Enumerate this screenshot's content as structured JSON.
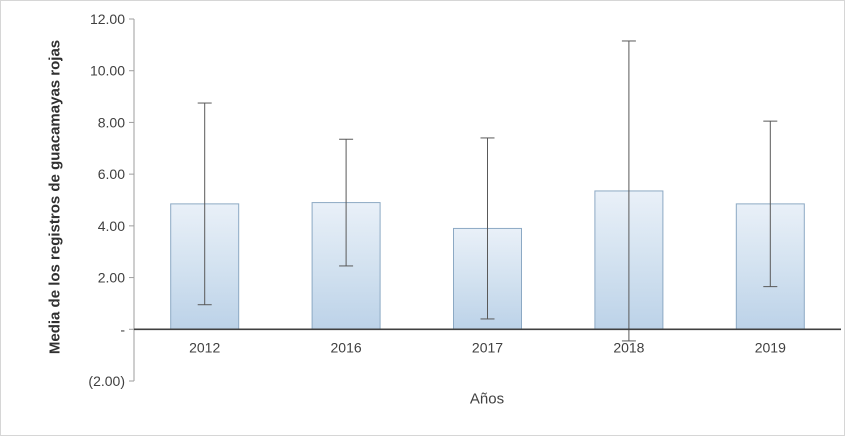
{
  "chart_data": {
    "type": "bar",
    "title": "",
    "xlabel": "Años",
    "ylabel": "Media de los registros de guacamayas rojas",
    "categories": [
      "2012",
      "2016",
      "2017",
      "2018",
      "2019"
    ],
    "series": [
      {
        "name": "Media de los registros de guacamayas rojas",
        "values": [
          4.85,
          4.9,
          3.9,
          5.35,
          4.85
        ]
      }
    ],
    "error_bars": {
      "low": [
        0.95,
        2.45,
        0.4,
        -0.45,
        1.65
      ],
      "high": [
        8.75,
        7.35,
        7.4,
        11.15,
        8.05
      ]
    },
    "ylim": [
      -2,
      12
    ],
    "yticks": [
      {
        "value": 12,
        "label": "12.00"
      },
      {
        "value": 10,
        "label": "10.00"
      },
      {
        "value": 8,
        "label": "8.00"
      },
      {
        "value": 6,
        "label": "6.00"
      },
      {
        "value": 4,
        "label": "4.00"
      },
      {
        "value": 2,
        "label": "2.00"
      },
      {
        "value": 0,
        "label": "-"
      },
      {
        "value": -2,
        "label": "(2.00)"
      }
    ],
    "grid": false,
    "legend": false,
    "colors": {
      "bar_fill_top": "#e9f0f8",
      "bar_fill_mid": "#d3e2f0",
      "bar_fill_bottom": "#bcd2e8",
      "bar_border": "#8ca9c4",
      "error_bar": "#595959",
      "axis": "#9e9e9e",
      "baseline": "#404040",
      "text": "#404040"
    }
  }
}
